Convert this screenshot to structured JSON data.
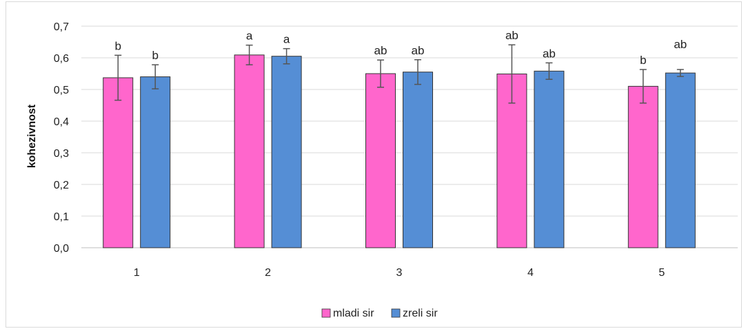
{
  "chart_data": {
    "type": "bar",
    "title": "",
    "xlabel": "",
    "ylabel": "kohezivnost",
    "ylim": [
      0,
      0.7
    ],
    "yticks": [
      "0,0",
      "0,1",
      "0,2",
      "0,3",
      "0,4",
      "0,5",
      "0,6",
      "0,7"
    ],
    "categories": [
      "1",
      "2",
      "3",
      "4",
      "5"
    ],
    "grid": true,
    "legend_position": "bottom",
    "series": [
      {
        "name": "mladi sir",
        "color": "#ff66cc",
        "values": [
          0.537,
          0.609,
          0.55,
          0.549,
          0.51
        ],
        "errors": [
          0.071,
          0.031,
          0.043,
          0.092,
          0.053
        ],
        "labels": [
          "b",
          "a",
          "ab",
          "ab",
          "b"
        ]
      },
      {
        "name": "zreli sir",
        "color": "#558ed5",
        "values": [
          0.54,
          0.605,
          0.555,
          0.558,
          0.552
        ],
        "errors": [
          0.038,
          0.024,
          0.039,
          0.026,
          0.011
        ],
        "labels": [
          "b",
          "a",
          "ab",
          "ab",
          "ab"
        ]
      }
    ]
  }
}
